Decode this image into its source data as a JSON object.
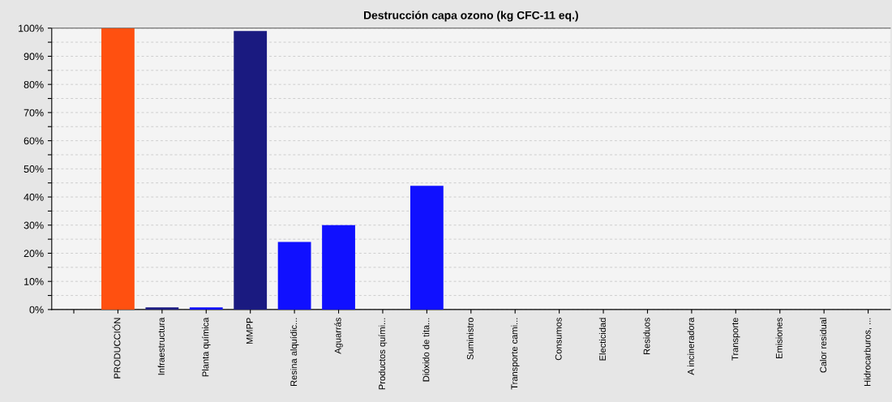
{
  "chart_data": {
    "type": "bar",
    "title": "Destrucción capa ozono (kg CFC-11 eq.)",
    "categories": [
      null,
      "PRODUCCIÓN",
      "Infraestructura",
      "Planta química",
      "MMPP",
      "Resina alquídic...",
      "Aguarrás",
      "Productos quími...",
      "Dióxido de tita...",
      "Suministro",
      "Transporte cami...",
      "Consumos",
      "Electicidad",
      "Residuos",
      "A incineradora",
      "Transporte",
      "Emisiones",
      "Calor residual",
      "Hidrocarburos, ..."
    ],
    "values": [
      0,
      100,
      0.8,
      0.8,
      99,
      24,
      30,
      0,
      44,
      0,
      0,
      0,
      0,
      0,
      0,
      0,
      0,
      0,
      0
    ],
    "colors": [
      "#1010ff",
      "#ff5010",
      "#1a1a80",
      "#1010ff",
      "#1a1a80",
      "#1010ff",
      "#1010ff",
      "#1010ff",
      "#1010ff",
      "#1010ff",
      "#1010ff",
      "#1010ff",
      "#1010ff",
      "#1010ff",
      "#1010ff",
      "#1010ff",
      "#1010ff",
      "#1010ff",
      "#1010ff"
    ],
    "ylim": [
      0,
      100
    ],
    "yticks": [
      {
        "value": 0,
        "label": "0%"
      },
      {
        "value": 5,
        "label": null
      },
      {
        "value": 10,
        "label": "10%"
      },
      {
        "value": 15,
        "label": null
      },
      {
        "value": 20,
        "label": "20%"
      },
      {
        "value": 25,
        "label": null
      },
      {
        "value": 30,
        "label": "30%"
      },
      {
        "value": 35,
        "label": null
      },
      {
        "value": 40,
        "label": "40%"
      },
      {
        "value": 45,
        "label": null
      },
      {
        "value": 50,
        "label": "50%"
      },
      {
        "value": 55,
        "label": null
      },
      {
        "value": 60,
        "label": "60%"
      },
      {
        "value": 65,
        "label": null
      },
      {
        "value": 70,
        "label": "70%"
      },
      {
        "value": 75,
        "label": null
      },
      {
        "value": 80,
        "label": "80%"
      },
      {
        "value": 85,
        "label": null
      },
      {
        "value": 90,
        "label": "90%"
      },
      {
        "value": 95,
        "label": null
      },
      {
        "value": 100,
        "label": "100%"
      }
    ],
    "grid": "y"
  }
}
